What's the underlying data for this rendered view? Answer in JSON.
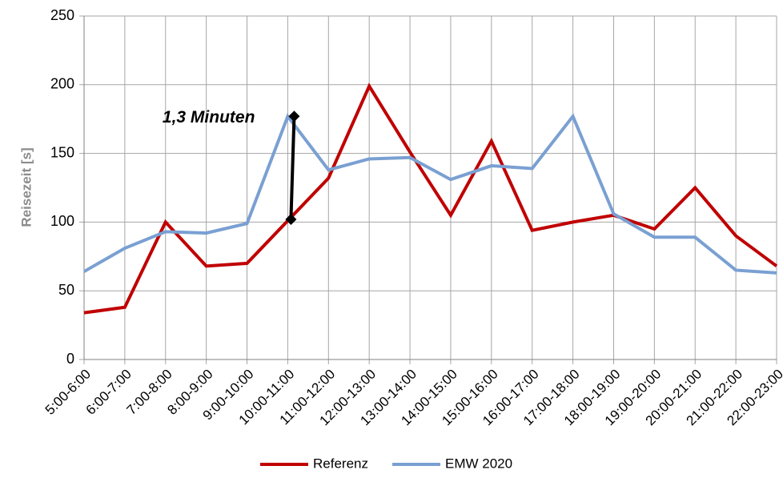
{
  "chart_data": {
    "type": "line",
    "ylabel": "Reisezeit [s]",
    "categories": [
      "5:00-6:00",
      "6:00-7:00",
      "7:00-8:00",
      "8:00-9:00",
      "9:00-10:00",
      "10:00-11:00",
      "11:00-12:00",
      "12:00-13:00",
      "13:00-14:00",
      "14:00-15:00",
      "15:00-16:00",
      "16:00-17:00",
      "17:00-18:00",
      "18:00-19:00",
      "19:00-20:00",
      "20:00-21:00",
      "21:00-22:00",
      "22:00-23:00"
    ],
    "series": [
      {
        "name": "Referenz",
        "color": "#c00000",
        "values": [
          34,
          38,
          100,
          68,
          70,
          101,
          132,
          199,
          151,
          105,
          159,
          94,
          100,
          105,
          95,
          125,
          90,
          68
        ]
      },
      {
        "name": "EMW 2020",
        "color": "#7aa0d2",
        "values": [
          64,
          81,
          93,
          92,
          99,
          177,
          138,
          146,
          147,
          131,
          141,
          139,
          177,
          106,
          89,
          89,
          65,
          63
        ]
      }
    ],
    "annotation": {
      "text": "1,3 Minuten",
      "values": [
        102,
        177
      ]
    },
    "ylim": [
      0,
      250
    ],
    "yticks": [
      0,
      50,
      100,
      150,
      200,
      250
    ],
    "grid": true,
    "legend": "bottom"
  }
}
